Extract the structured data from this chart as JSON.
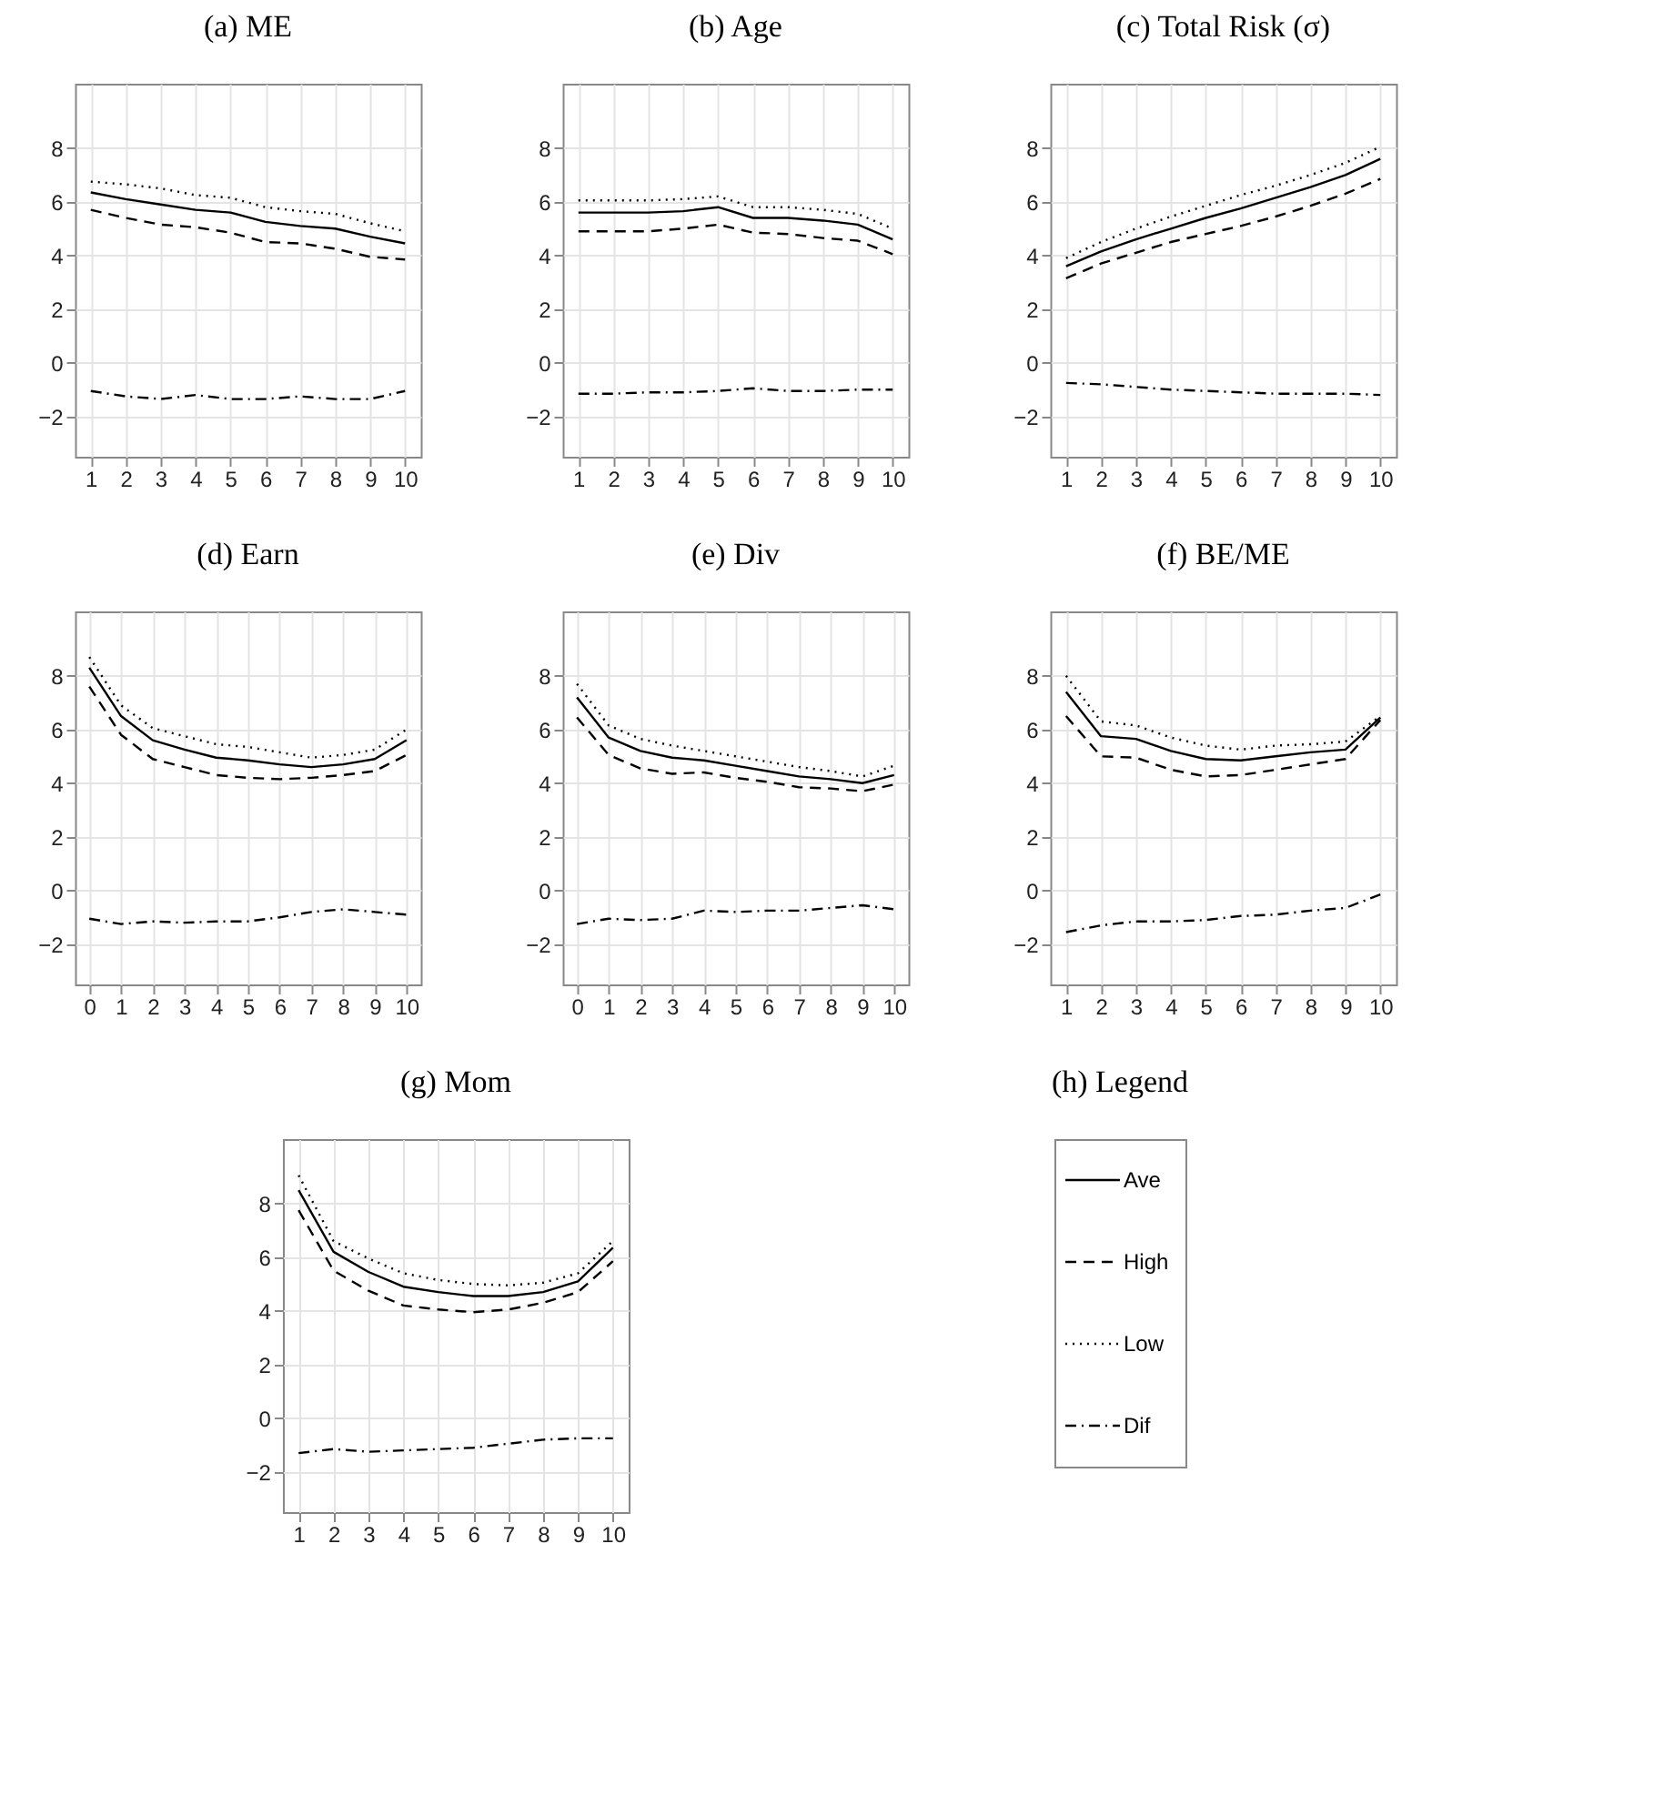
{
  "chart_data": [
    {
      "type": "line",
      "title": "(a) ME",
      "x": [
        1,
        2,
        3,
        4,
        5,
        6,
        7,
        8,
        9,
        10
      ],
      "xlim": [
        0.55,
        10.45
      ],
      "xticks": [
        1,
        2,
        3,
        4,
        5,
        6,
        7,
        8,
        9,
        10
      ],
      "ylim": [
        -3.5,
        10.4
      ],
      "yticks": [
        -2,
        0,
        2,
        4,
        6,
        8
      ],
      "grid": true,
      "legend": false,
      "series": [
        {
          "color": "#000000",
          "line_style": "solid",
          "values": [
            6.35,
            6.1,
            5.9,
            5.7,
            5.6,
            5.25,
            5.1,
            5.0,
            4.7,
            4.45
          ]
        },
        {
          "color": "#000000",
          "line_style": "dashed",
          "values": [
            5.7,
            5.4,
            5.15,
            5.05,
            4.85,
            4.5,
            4.45,
            4.25,
            3.95,
            3.85
          ]
        },
        {
          "color": "#000000",
          "line_style": "dotted",
          "values": [
            6.75,
            6.65,
            6.5,
            6.25,
            6.15,
            5.8,
            5.65,
            5.55,
            5.2,
            4.9
          ]
        },
        {
          "color": "#000000",
          "line_style": "dashdot",
          "values": [
            -1.05,
            -1.25,
            -1.35,
            -1.2,
            -1.35,
            -1.35,
            -1.25,
            -1.35,
            -1.35,
            -1.05
          ]
        }
      ]
    },
    {
      "type": "line",
      "title": "(b) Age",
      "x": [
        1,
        2,
        3,
        4,
        5,
        6,
        7,
        8,
        9,
        10
      ],
      "xlim": [
        0.55,
        10.45
      ],
      "xticks": [
        1,
        2,
        3,
        4,
        5,
        6,
        7,
        8,
        9,
        10
      ],
      "ylim": [
        -3.5,
        10.4
      ],
      "yticks": [
        -2,
        0,
        2,
        4,
        6,
        8
      ],
      "grid": true,
      "legend": false,
      "series": [
        {
          "color": "#000000",
          "line_style": "solid",
          "values": [
            5.6,
            5.6,
            5.6,
            5.65,
            5.8,
            5.4,
            5.4,
            5.3,
            5.15,
            4.6
          ]
        },
        {
          "color": "#000000",
          "line_style": "dashed",
          "values": [
            4.9,
            4.9,
            4.9,
            5.0,
            5.15,
            4.85,
            4.8,
            4.65,
            4.55,
            4.05
          ]
        },
        {
          "color": "#000000",
          "line_style": "dotted",
          "values": [
            6.05,
            6.05,
            6.05,
            6.1,
            6.2,
            5.8,
            5.8,
            5.7,
            5.55,
            5.0
          ]
        },
        {
          "color": "#000000",
          "line_style": "dashdot",
          "values": [
            -1.15,
            -1.15,
            -1.1,
            -1.1,
            -1.05,
            -0.95,
            -1.05,
            -1.05,
            -1.0,
            -1.0
          ]
        }
      ]
    },
    {
      "type": "line",
      "title": "(c) Total Risk (σ)",
      "x": [
        1,
        2,
        3,
        4,
        5,
        6,
        7,
        8,
        9,
        10
      ],
      "xlim": [
        0.55,
        10.45
      ],
      "xticks": [
        1,
        2,
        3,
        4,
        5,
        6,
        7,
        8,
        9,
        10
      ],
      "ylim": [
        -3.5,
        10.4
      ],
      "yticks": [
        -2,
        0,
        2,
        4,
        6,
        8
      ],
      "grid": true,
      "legend": false,
      "series": [
        {
          "color": "#000000",
          "line_style": "solid",
          "values": [
            3.6,
            4.15,
            4.6,
            5.0,
            5.4,
            5.75,
            6.15,
            6.55,
            7.0,
            7.6
          ]
        },
        {
          "color": "#000000",
          "line_style": "dashed",
          "values": [
            3.15,
            3.7,
            4.1,
            4.5,
            4.8,
            5.1,
            5.45,
            5.85,
            6.3,
            6.85
          ]
        },
        {
          "color": "#000000",
          "line_style": "dotted",
          "values": [
            3.9,
            4.5,
            5.0,
            5.45,
            5.85,
            6.25,
            6.6,
            7.0,
            7.45,
            8.05
          ]
        },
        {
          "color": "#000000",
          "line_style": "dashdot",
          "values": [
            -0.75,
            -0.8,
            -0.9,
            -1.0,
            -1.05,
            -1.1,
            -1.15,
            -1.15,
            -1.15,
            -1.2
          ]
        }
      ]
    },
    {
      "type": "line",
      "title": "(d) Earn",
      "x": [
        0,
        1,
        2,
        3,
        4,
        5,
        6,
        7,
        8,
        9,
        10
      ],
      "xlim": [
        -0.45,
        10.45
      ],
      "xticks": [
        0,
        1,
        2,
        3,
        4,
        5,
        6,
        7,
        8,
        9,
        10
      ],
      "ylim": [
        -3.5,
        10.4
      ],
      "yticks": [
        -2,
        0,
        2,
        4,
        6,
        8
      ],
      "grid": true,
      "legend": false,
      "series": [
        {
          "color": "#000000",
          "line_style": "solid",
          "values": [
            8.3,
            6.5,
            5.6,
            5.25,
            4.95,
            4.85,
            4.7,
            4.6,
            4.7,
            4.9,
            5.6
          ]
        },
        {
          "color": "#000000",
          "line_style": "dashed",
          "values": [
            7.6,
            5.8,
            4.9,
            4.6,
            4.3,
            4.2,
            4.15,
            4.2,
            4.3,
            4.45,
            5.05
          ]
        },
        {
          "color": "#000000",
          "line_style": "dotted",
          "values": [
            8.7,
            6.9,
            6.05,
            5.75,
            5.45,
            5.35,
            5.15,
            4.95,
            5.05,
            5.25,
            6.0
          ]
        },
        {
          "color": "#000000",
          "line_style": "dashdot",
          "values": [
            -1.05,
            -1.25,
            -1.15,
            -1.2,
            -1.15,
            -1.15,
            -1.0,
            -0.8,
            -0.7,
            -0.8,
            -0.9
          ]
        }
      ]
    },
    {
      "type": "line",
      "title": "(e) Div",
      "x": [
        0,
        1,
        2,
        3,
        4,
        5,
        6,
        7,
        8,
        9,
        10
      ],
      "xlim": [
        -0.45,
        10.45
      ],
      "xticks": [
        0,
        1,
        2,
        3,
        4,
        5,
        6,
        7,
        8,
        9,
        10
      ],
      "ylim": [
        -3.5,
        10.4
      ],
      "yticks": [
        -2,
        0,
        2,
        4,
        6,
        8
      ],
      "grid": true,
      "legend": false,
      "series": [
        {
          "color": "#000000",
          "line_style": "solid",
          "values": [
            7.2,
            5.7,
            5.2,
            4.95,
            4.85,
            4.65,
            4.45,
            4.25,
            4.15,
            4.0,
            4.3
          ]
        },
        {
          "color": "#000000",
          "line_style": "dashed",
          "values": [
            6.45,
            5.05,
            4.55,
            4.35,
            4.4,
            4.2,
            4.05,
            3.85,
            3.8,
            3.7,
            3.95
          ]
        },
        {
          "color": "#000000",
          "line_style": "dotted",
          "values": [
            7.7,
            6.15,
            5.65,
            5.4,
            5.2,
            5.0,
            4.8,
            4.6,
            4.45,
            4.25,
            4.65
          ]
        },
        {
          "color": "#000000",
          "line_style": "dashdot",
          "values": [
            -1.25,
            -1.05,
            -1.1,
            -1.05,
            -0.75,
            -0.8,
            -0.75,
            -0.75,
            -0.65,
            -0.55,
            -0.7
          ]
        }
      ]
    },
    {
      "type": "line",
      "title": "(f) BE/ME",
      "x": [
        1,
        2,
        3,
        4,
        5,
        6,
        7,
        8,
        9,
        10
      ],
      "xlim": [
        0.55,
        10.45
      ],
      "xticks": [
        1,
        2,
        3,
        4,
        5,
        6,
        7,
        8,
        9,
        10
      ],
      "ylim": [
        -3.5,
        10.4
      ],
      "yticks": [
        -2,
        0,
        2,
        4,
        6,
        8
      ],
      "grid": true,
      "legend": false,
      "series": [
        {
          "color": "#000000",
          "line_style": "solid",
          "values": [
            7.4,
            5.75,
            5.65,
            5.2,
            4.9,
            4.85,
            5.0,
            5.15,
            5.25,
            6.45
          ]
        },
        {
          "color": "#000000",
          "line_style": "dashed",
          "values": [
            6.5,
            5.0,
            4.95,
            4.5,
            4.25,
            4.3,
            4.5,
            4.7,
            4.9,
            6.35
          ]
        },
        {
          "color": "#000000",
          "line_style": "dotted",
          "values": [
            8.0,
            6.3,
            6.15,
            5.7,
            5.4,
            5.25,
            5.4,
            5.45,
            5.55,
            6.5
          ]
        },
        {
          "color": "#000000",
          "line_style": "dashdot",
          "values": [
            -1.55,
            -1.3,
            -1.15,
            -1.15,
            -1.1,
            -0.95,
            -0.9,
            -0.75,
            -0.65,
            -0.15
          ]
        }
      ]
    },
    {
      "type": "line",
      "title": "(g) Mom",
      "x": [
        1,
        2,
        3,
        4,
        5,
        6,
        7,
        8,
        9,
        10
      ],
      "xlim": [
        0.55,
        10.45
      ],
      "xticks": [
        1,
        2,
        3,
        4,
        5,
        6,
        7,
        8,
        9,
        10
      ],
      "ylim": [
        -3.5,
        10.4
      ],
      "yticks": [
        -2,
        0,
        2,
        4,
        6,
        8
      ],
      "grid": true,
      "legend": "right",
      "legend_title": "(h) Legend",
      "series": [
        {
          "name": "Ave",
          "color": "#000000",
          "line_style": "solid",
          "values": [
            8.5,
            6.2,
            5.45,
            4.9,
            4.7,
            4.55,
            4.55,
            4.7,
            5.1,
            6.35
          ]
        },
        {
          "name": "High",
          "color": "#000000",
          "line_style": "dashed",
          "values": [
            7.75,
            5.5,
            4.75,
            4.2,
            4.05,
            3.95,
            4.05,
            4.3,
            4.7,
            5.85
          ]
        },
        {
          "name": "Low",
          "color": "#000000",
          "line_style": "dotted",
          "values": [
            9.05,
            6.6,
            5.95,
            5.4,
            5.15,
            5.0,
            4.95,
            5.05,
            5.4,
            6.6
          ]
        },
        {
          "name": "Dif",
          "color": "#000000",
          "line_style": "dashdot",
          "values": [
            -1.3,
            -1.15,
            -1.25,
            -1.2,
            -1.15,
            -1.1,
            -0.95,
            -0.8,
            -0.75,
            -0.75
          ]
        }
      ]
    }
  ]
}
